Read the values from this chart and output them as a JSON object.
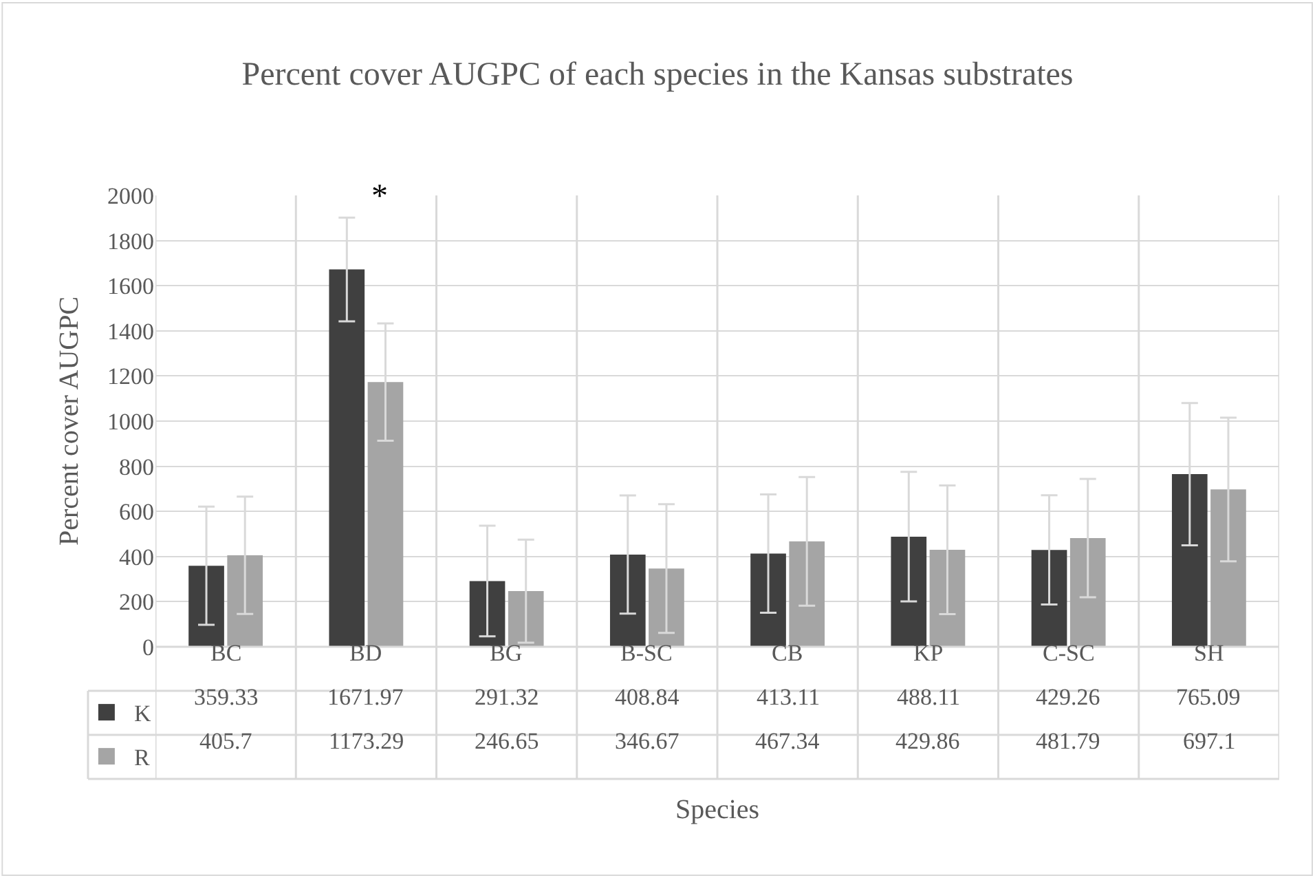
{
  "chart_data": {
    "type": "bar",
    "title": "Percent cover AUGPC of each species in the Kansas substrates",
    "xlabel": "Species",
    "ylabel": "Percent cover AUGPC",
    "categories": [
      "BC",
      "BD",
      "BG",
      "B-SC",
      "CB",
      "KP",
      "C-SC",
      "SH"
    ],
    "series": [
      {
        "name": "K",
        "color": "#404040",
        "values": [
          359.33,
          1671.97,
          291.32,
          408.84,
          413.11,
          488.11,
          429.26,
          765.09
        ],
        "errors": [
          262,
          230,
          245,
          262,
          262,
          287,
          242,
          315
        ]
      },
      {
        "name": "R",
        "color": "#a5a5a5",
        "values": [
          405.7,
          1173.29,
          246.65,
          346.67,
          467.34,
          429.86,
          481.79,
          697.1
        ],
        "errors": [
          260,
          260,
          228,
          285,
          285,
          285,
          262,
          318
        ]
      }
    ],
    "ylim": [
      0,
      2000
    ],
    "yticks": [
      0,
      200,
      400,
      600,
      800,
      1000,
      1200,
      1400,
      1600,
      1800,
      2000
    ],
    "grid": true,
    "data_labels": true,
    "legend": "bottom left",
    "annotations": [
      "*"
    ]
  }
}
